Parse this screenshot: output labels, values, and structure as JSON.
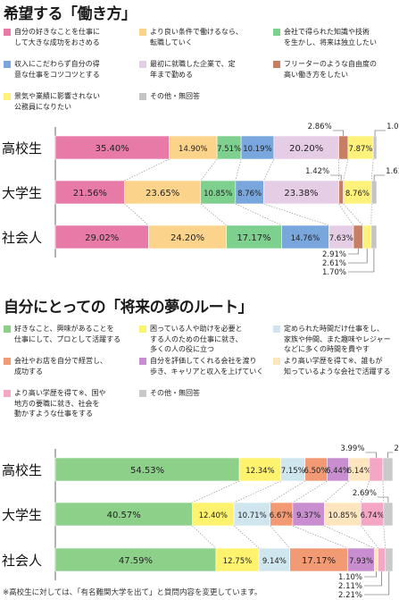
{
  "chart_data": [
    {
      "type": "bar",
      "orientation": "horizontal",
      "stacked": "100%",
      "title": "希望する「働き方」",
      "categories": [
        "高校生",
        "大学生",
        "社会人"
      ],
      "series": [
        {
          "name": "自分の好きなことを仕事にして大きな成功をおさめる",
          "values": [
            35.4,
            21.56,
            29.02
          ],
          "color": "#e87aa8"
        },
        {
          "name": "より良い条件で働けるなら、転職していく",
          "values": [
            14.9,
            23.65,
            24.2
          ],
          "color": "#fcd38a"
        },
        {
          "name": "会社で得られた知識や技術を生かし、将来は独立したい",
          "values": [
            7.51,
            10.85,
            17.17
          ],
          "color": "#7ed08e"
        },
        {
          "name": "収入にこだわらず自分の得意な仕事をコツコツとする",
          "values": [
            10.19,
            8.76,
            14.76
          ],
          "color": "#79a6dc"
        },
        {
          "name": "最初に就職した企業で、定年まで勤める",
          "values": [
            20.2,
            23.38,
            7.63
          ],
          "color": "#e6cde6"
        },
        {
          "name": "フリーターのような自由度の高い働き方をしたい",
          "values": [
            2.86,
            1.42,
            2.91
          ],
          "color": "#c87e62"
        },
        {
          "name": "景気や業績に影響されない公務員になりたい",
          "values": [
            7.87,
            8.76,
            2.61
          ],
          "color": "#fff27a"
        },
        {
          "name": "その他・無回答",
          "values": [
            1.07,
            1.61,
            1.7
          ],
          "color": "#c4c4c4"
        }
      ],
      "labels": {
        "高校生": [
          "35.40%",
          "14.90%",
          "7.51%",
          "10.19%",
          "20.20%",
          "2.86%",
          "7.87%",
          "1.07%"
        ],
        "大学生": [
          "21.56%",
          "23.65%",
          "10.85%",
          "8.76%",
          "23.38%",
          "1.42%",
          "8.76%",
          "1.61%"
        ],
        "社会人": [
          "29.02%",
          "24.20%",
          "17.17%",
          "14.76%",
          "7.63%",
          "2.91%",
          "2.61%",
          "1.70%"
        ]
      },
      "legend": [
        {
          "text": "自分の好きなことを仕事に\nして大きな成功をおさめる",
          "color": "#e87aa8",
          "col": 0,
          "row": 0
        },
        {
          "text": "より良い条件で働けるなら、\n転職していく",
          "color": "#fcd38a",
          "col": 1,
          "row": 0
        },
        {
          "text": "会社で得られた知識や技術\nを生かし、将来は独立したい",
          "color": "#7ed08e",
          "col": 2,
          "row": 0
        },
        {
          "text": "収入にこだわらず自分の得\n意な仕事をコツコツとする",
          "color": "#79a6dc",
          "col": 0,
          "row": 1
        },
        {
          "text": "最初に就職した企業で、定\n年まで勤める",
          "color": "#e6cde6",
          "col": 1,
          "row": 1
        },
        {
          "text": "フリーターのような自由度の\n高い働き方をしたい",
          "color": "#c87e62",
          "col": 2,
          "row": 1
        },
        {
          "text": "景気や業績に影響されない\n公務員になりたい",
          "color": "#fff27a",
          "col": 0,
          "row": 2
        },
        {
          "text": "その他・無回答",
          "color": "#c4c4c4",
          "col": 1,
          "row": 2
        }
      ]
    },
    {
      "type": "bar",
      "orientation": "horizontal",
      "stacked": "100%",
      "title": "自分にとっての「将来の夢のルート」",
      "categories": [
        "高校生",
        "大学生",
        "社会人"
      ],
      "series": [
        {
          "name": "好きなこと、興味があることを仕事にして、プロとして活躍する",
          "values": [
            54.53,
            40.57,
            47.59
          ],
          "color": "#8dd08a"
        },
        {
          "name": "困っている人や助けを必要とする人のための仕事に就き、多くの人の役に立つ",
          "values": [
            12.34,
            12.4,
            12.75
          ],
          "color": "#fff26e"
        },
        {
          "name": "定められた時間だけ仕事をし、家族や仲間、また趣味やレジャーなどに多くの時間を費やす",
          "values": [
            7.15,
            10.71,
            9.14
          ],
          "color": "#cfe6ee"
        },
        {
          "name": "会社やお店を自分で経営し、成功する",
          "values": [
            6.5,
            6.67,
            17.17
          ],
          "color": "#f29a74"
        },
        {
          "name": "自分を評価してくれる会社を渡り歩き、キャリアと収入を上げていく",
          "values": [
            6.44,
            9.37,
            7.93
          ],
          "color": "#c98ed0"
        },
        {
          "name": "より高い学歴を得て※、誰もが知っているような会社で活躍する",
          "values": [
            6.14,
            10.85,
            1.1
          ],
          "color": "#fde6bf"
        },
        {
          "name": "より高い学歴を得て※、国や地方の要職に就き、社会を動かすような仕事をする",
          "values": [
            3.99,
            6.74,
            2.11
          ],
          "color": "#f4a6c4"
        },
        {
          "name": "その他・無回答",
          "values": [
            2.92,
            2.69,
            2.21
          ],
          "color": "#c9c9c9"
        }
      ],
      "labels": {
        "高校生": [
          "54.53%",
          "12.34%",
          "7.15%",
          "6.50%",
          "6.44%",
          "6.14%",
          "3.99%",
          "2.92%"
        ],
        "大学生": [
          "40.57%",
          "12.40%",
          "10.71%",
          "6.67%",
          "9.37%",
          "10.85%",
          "6.74%",
          "2.69%"
        ],
        "社会人": [
          "47.59%",
          "12.75%",
          "9.14%",
          "17.17%",
          "7.93%",
          "1.10%",
          "2.11%",
          "2.21%"
        ]
      },
      "legend": [
        {
          "text": "好きなこと、興味があることを\n仕事にして、プロとして活躍する",
          "color": "#8dd08a",
          "col": 0,
          "row": 0
        },
        {
          "text": "困っている人や助けを必要と\nする人のための仕事に就き、\n多くの人の役に立つ",
          "color": "#fff26e",
          "col": 1,
          "row": 0
        },
        {
          "text": "定められた時間だけ仕事をし、\n家族や仲間、また趣味やレジャー\nなどに多くの時間を費やす",
          "color": "#cfe6ee",
          "col": 2,
          "row": 0
        },
        {
          "text": "会社やお店を自分で経営し、\n成功する",
          "color": "#f29a74",
          "col": 0,
          "row": 1
        },
        {
          "text": "自分を評価してくれる会社を渡り\n歩き、キャリアと収入を上げていく",
          "color": "#c98ed0",
          "col": 1,
          "row": 1
        },
        {
          "text": "より高い学歴を得て※、誰もが\n知っているような会社で活躍する",
          "color": "#fde6bf",
          "col": 2,
          "row": 1
        },
        {
          "text": "より高い学歴を得て※、国や\n地方の要職に就き、社会を\n動かすような仕事をする",
          "color": "#f4a6c4",
          "col": 0,
          "row": 2
        },
        {
          "text": "その他・無回答",
          "color": "#c9c9c9",
          "col": 1,
          "row": 2
        }
      ]
    }
  ],
  "footnote": "※高校生に対しては、「有名難関大学を出て」と質問内容を変更しています。"
}
